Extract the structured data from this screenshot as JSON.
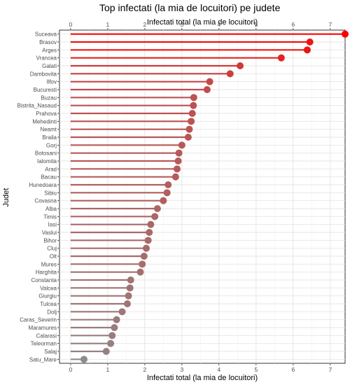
{
  "chart_data": {
    "type": "lollipop",
    "title": "Top infectati (la mia de locuitori) pe judete",
    "xlabel_top": "Infectati total (la mia de locuitori)",
    "xlabel": "Infectati total (la mia de locuitori)",
    "ylabel": "Judet",
    "xlim": [
      -0.3,
      7.4
    ],
    "x_ticks": [
      0,
      1,
      2,
      3,
      4,
      5,
      6,
      7
    ],
    "grid": true,
    "color_low": "#8c8c8c",
    "color_high": "#ff0000",
    "categories": [
      "Suceava",
      "Brasov",
      "Arges",
      "Vrancea",
      "Galati",
      "Dambovita",
      "Ilfov",
      "Bucuresti",
      "Buzau",
      "Bistrita_Nasaud",
      "Prahova",
      "Mehedinti",
      "Neamt",
      "Braila",
      "Gorj",
      "Botosani",
      "Ialomita",
      "Arad",
      "Bacau",
      "Hunedoara",
      "Sibiu",
      "Covasna",
      "Alba",
      "Timis",
      "Iasi",
      "Vaslui",
      "Bihor",
      "Cluj",
      "Olt",
      "Mures",
      "Harghita",
      "Constanta",
      "Valcea",
      "Giurgiu",
      "Tulcea",
      "Dolj",
      "Caras_Severin",
      "Maramures",
      "Calarasi",
      "Teleorman",
      "Salaj",
      "Satu_Mare"
    ],
    "values": [
      7.4,
      6.45,
      6.38,
      5.68,
      4.57,
      4.3,
      3.75,
      3.68,
      3.32,
      3.31,
      3.28,
      3.25,
      3.2,
      3.17,
      3.0,
      2.92,
      2.9,
      2.87,
      2.83,
      2.63,
      2.6,
      2.5,
      2.34,
      2.27,
      2.16,
      2.12,
      2.09,
      2.04,
      1.98,
      1.93,
      1.88,
      1.62,
      1.6,
      1.56,
      1.53,
      1.39,
      1.24,
      1.18,
      1.12,
      1.08,
      0.96,
      0.36
    ]
  }
}
